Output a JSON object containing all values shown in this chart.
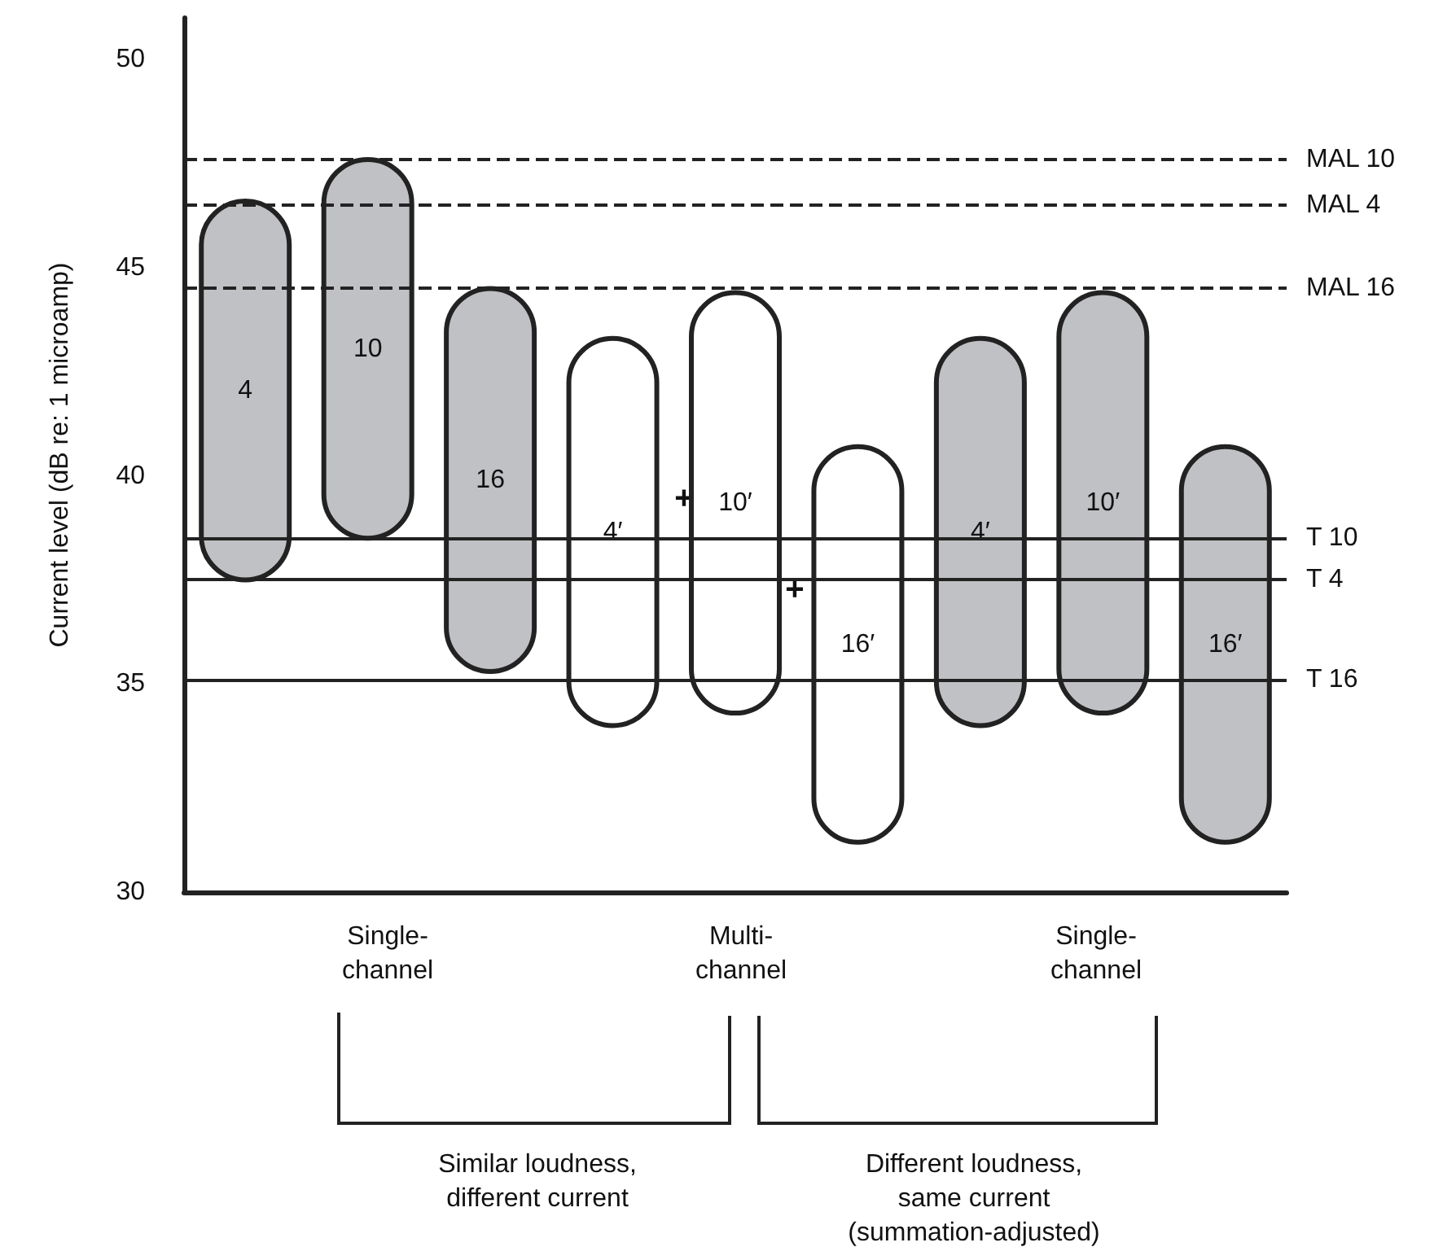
{
  "chart_data": {
    "type": "bar",
    "ylabel": "Current level (dB re: 1 microamp)",
    "categories": [
      "4",
      "10",
      "16",
      "4′",
      "10′",
      "16′",
      "4′",
      "10′",
      "16′"
    ],
    "base": [
      37.5,
      38.5,
      35.3,
      34.0,
      34.3,
      31.2,
      34.0,
      34.3,
      31.2
    ],
    "values": [
      9.1,
      9.1,
      9.2,
      9.3,
      10.1,
      9.5,
      9.3,
      10.1,
      9.5
    ],
    "colors": [
      "#c0c1c4",
      "#c0c1c4",
      "#c0c1c4",
      "#ffffff",
      "#ffffff",
      "#ffffff",
      "#c0c1c4",
      "#c0c1c4",
      "#c0c1c4"
    ],
    "ylim": [
      30,
      51
    ],
    "yticks": [
      30,
      35,
      40,
      45,
      50
    ],
    "grid": false,
    "ref_lines": [
      {
        "axis": "y",
        "value": 47.6,
        "label": "MAL 10",
        "line_style": "dashed"
      },
      {
        "axis": "y",
        "value": 46.5,
        "label": "MAL 4",
        "line_style": "dashed"
      },
      {
        "axis": "y",
        "value": 44.5,
        "label": "MAL 16",
        "line_style": "dashed"
      },
      {
        "axis": "y",
        "value": 38.5,
        "label": "T 10",
        "line_style": "solid"
      },
      {
        "axis": "y",
        "value": 37.5,
        "label": "T 4",
        "line_style": "solid"
      },
      {
        "axis": "y",
        "value": 35.1,
        "label": "T 16",
        "line_style": "solid"
      }
    ],
    "annotations": [
      "Single-\nchannel",
      "Multi-\nchannel",
      "Single-\nchannel",
      "Similar loudness,\ndifferent current",
      "Different loudness,\nsame current\n(summation-adjusted)",
      "+",
      "+"
    ]
  }
}
